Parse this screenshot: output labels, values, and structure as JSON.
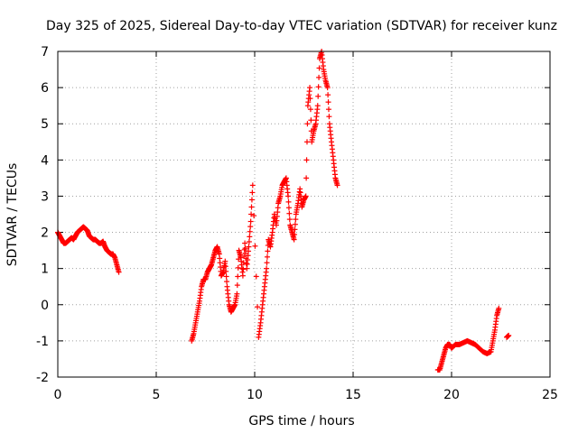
{
  "chart_data": {
    "type": "scatter",
    "title": "Day 325 of 2025, Sidereal Day-to-day VTEC variation (SDTVAR) for receiver kunz",
    "xlabel": "GPS time / hours",
    "ylabel": "SDTVAR / TECUs",
    "xlim": [
      0,
      25
    ],
    "ylim": [
      -2,
      7
    ],
    "xticks": [
      0,
      5,
      10,
      15,
      20,
      25
    ],
    "yticks": [
      -2,
      -1,
      0,
      1,
      2,
      3,
      4,
      5,
      6,
      7
    ],
    "grid": true,
    "marker": "+",
    "color": "#ff0000",
    "series": [
      {
        "name": "SDTVAR",
        "x": [
          0.0,
          0.1,
          0.2,
          0.3,
          0.4,
          0.5,
          0.6,
          0.7,
          0.8,
          0.9,
          1.0,
          1.1,
          1.2,
          1.3,
          1.4,
          1.5,
          1.6,
          1.7,
          1.8,
          1.9,
          2.0,
          2.1,
          2.2,
          2.3,
          2.4,
          2.5,
          2.6,
          2.7,
          2.8,
          2.9,
          3.0,
          3.1,
          6.8,
          6.9,
          7.0,
          7.1,
          7.2,
          7.3,
          7.4,
          7.5,
          7.6,
          7.7,
          7.8,
          7.9,
          8.0,
          8.1,
          8.2,
          8.3,
          8.4,
          8.5,
          8.6,
          8.7,
          8.8,
          8.9,
          9.0,
          9.1,
          9.2,
          9.3,
          9.4,
          9.5,
          9.6,
          9.7,
          9.8,
          9.9,
          10.2,
          10.3,
          10.4,
          10.5,
          10.6,
          10.7,
          10.8,
          10.9,
          11.0,
          11.1,
          11.2,
          11.3,
          11.4,
          11.5,
          11.6,
          11.7,
          11.8,
          11.9,
          12.0,
          12.1,
          12.2,
          12.3,
          12.4,
          12.5,
          12.6,
          12.7,
          12.8,
          12.9,
          13.0,
          13.1,
          13.2,
          13.3,
          13.4,
          13.5,
          13.6,
          13.7,
          13.8,
          13.9,
          14.0,
          14.1,
          14.2,
          19.3,
          19.4,
          19.5,
          19.6,
          19.7,
          19.8,
          19.9,
          20.0,
          20.2,
          20.4,
          20.6,
          20.8,
          21.0,
          21.2,
          21.4,
          21.6,
          21.8,
          22.0,
          22.1,
          22.2,
          22.3,
          22.4,
          22.8,
          22.9
        ],
        "y": [
          2.0,
          1.9,
          1.8,
          1.7,
          1.7,
          1.75,
          1.8,
          1.85,
          1.8,
          1.9,
          2.0,
          2.05,
          2.1,
          2.15,
          2.1,
          2.05,
          1.9,
          1.85,
          1.8,
          1.8,
          1.75,
          1.7,
          1.7,
          1.75,
          1.6,
          1.5,
          1.45,
          1.4,
          1.4,
          1.3,
          1.1,
          0.9,
          -1.0,
          -0.8,
          -0.5,
          -0.2,
          0.1,
          0.5,
          0.7,
          0.7,
          0.9,
          1.0,
          1.1,
          1.3,
          1.5,
          1.6,
          1.4,
          0.8,
          0.9,
          1.2,
          0.5,
          0.0,
          -0.2,
          -0.1,
          0.0,
          0.3,
          1.5,
          1.3,
          0.8,
          1.7,
          1.0,
          1.6,
          2.3,
          3.3,
          -0.9,
          -0.5,
          0.0,
          0.5,
          1.0,
          1.8,
          1.6,
          2.0,
          2.5,
          2.2,
          2.8,
          3.0,
          3.3,
          3.4,
          3.5,
          3.0,
          2.2,
          2.0,
          1.8,
          2.5,
          2.8,
          3.2,
          2.7,
          2.9,
          3.0,
          5.5,
          6.0,
          4.5,
          4.8,
          5.0,
          5.5,
          6.8,
          7.0,
          6.5,
          6.2,
          6.0,
          5.0,
          4.5,
          4.0,
          3.5,
          3.3,
          -1.8,
          -1.8,
          -1.6,
          -1.4,
          -1.2,
          -1.1,
          -1.1,
          -1.2,
          -1.1,
          -1.1,
          -1.05,
          -1.0,
          -1.05,
          -1.1,
          -1.2,
          -1.3,
          -1.35,
          -1.3,
          -1.0,
          -0.7,
          -0.3,
          -0.1,
          -0.9,
          -0.85
        ]
      }
    ]
  }
}
